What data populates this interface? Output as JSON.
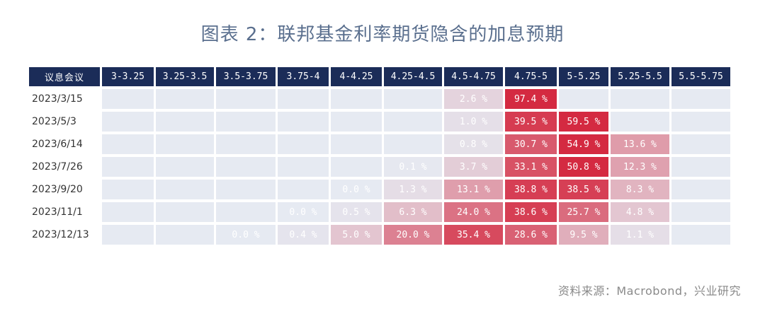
{
  "title": "图表 2：联邦基金利率期货隐含的加息预期",
  "source": "资料来源：Macrobond，兴业研究",
  "chart_data": {
    "type": "table",
    "row_header": "议息会议",
    "columns": [
      "3-3.25",
      "3.25-3.5",
      "3.5-3.75",
      "3.75-4",
      "4-4.25",
      "4.25-4.5",
      "4.5-4.75",
      "4.75-5",
      "5-5.25",
      "5.25-5.5",
      "5.5-5.75"
    ],
    "rows": [
      {
        "date": "2023/3/15",
        "values": [
          "",
          "",
          "",
          "",
          "",
          "",
          "2.6 %",
          "97.4 %",
          "",
          "",
          ""
        ]
      },
      {
        "date": "2023/5/3",
        "values": [
          "",
          "",
          "",
          "",
          "",
          "",
          "1.0 %",
          "39.5 %",
          "59.5 %",
          "",
          ""
        ]
      },
      {
        "date": "2023/6/14",
        "values": [
          "",
          "",
          "",
          "",
          "",
          "",
          "0.8 %",
          "30.7 %",
          "54.9 %",
          "13.6 %",
          ""
        ]
      },
      {
        "date": "2023/7/26",
        "values": [
          "",
          "",
          "",
          "",
          "",
          "0.1 %",
          "3.7 %",
          "33.1 %",
          "50.8 %",
          "12.3 %",
          ""
        ]
      },
      {
        "date": "2023/9/20",
        "values": [
          "",
          "",
          "",
          "",
          "0.0 %",
          "1.3 %",
          "13.1 %",
          "38.8 %",
          "38.5 %",
          "8.3 %",
          ""
        ]
      },
      {
        "date": "2023/11/1",
        "values": [
          "",
          "",
          "",
          "0.0 %",
          "0.5 %",
          "6.3 %",
          "24.0 %",
          "38.6 %",
          "25.7 %",
          "4.8 %",
          ""
        ]
      },
      {
        "date": "2023/12/13",
        "values": [
          "",
          "",
          "0.0 %",
          "0.4 %",
          "5.0 %",
          "20.0 %",
          "35.4 %",
          "28.6 %",
          "9.5 %",
          "1.1 %",
          ""
        ]
      }
    ],
    "colors": {
      "header_bg": "#1b2c58",
      "empty_cell": "#e6eaf2",
      "low_cell": "#e6eaf2",
      "high_cell": "#d42a41"
    }
  }
}
